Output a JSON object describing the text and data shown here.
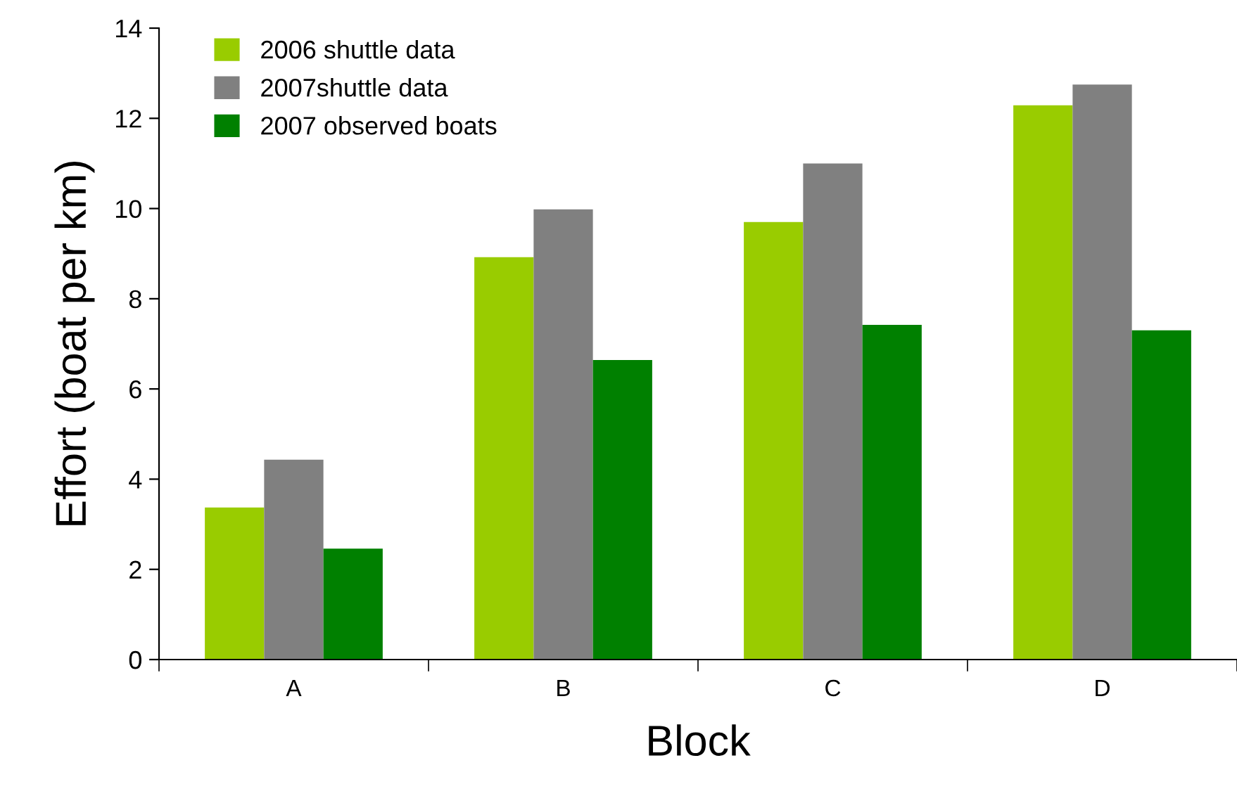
{
  "chart_data": {
    "type": "bar",
    "xlabel": "Block",
    "ylabel": "Effort (boat per km)",
    "categories": [
      "A",
      "B",
      "C",
      "D"
    ],
    "series": [
      {
        "name": "2006 shuttle data",
        "color": "#99cc00",
        "values": [
          3.37,
          8.92,
          9.7,
          12.29
        ]
      },
      {
        "name": "2007shuttle data",
        "color": "#808080",
        "values": [
          4.43,
          9.98,
          11.0,
          12.75
        ]
      },
      {
        "name": "2007 observed boats",
        "color": "#008000",
        "values": [
          2.46,
          6.64,
          7.42,
          7.3
        ]
      }
    ],
    "ylim": [
      0,
      14
    ],
    "yticks": [
      0,
      2,
      4,
      6,
      8,
      10,
      12,
      14
    ],
    "grid": false,
    "legend": "top left"
  }
}
